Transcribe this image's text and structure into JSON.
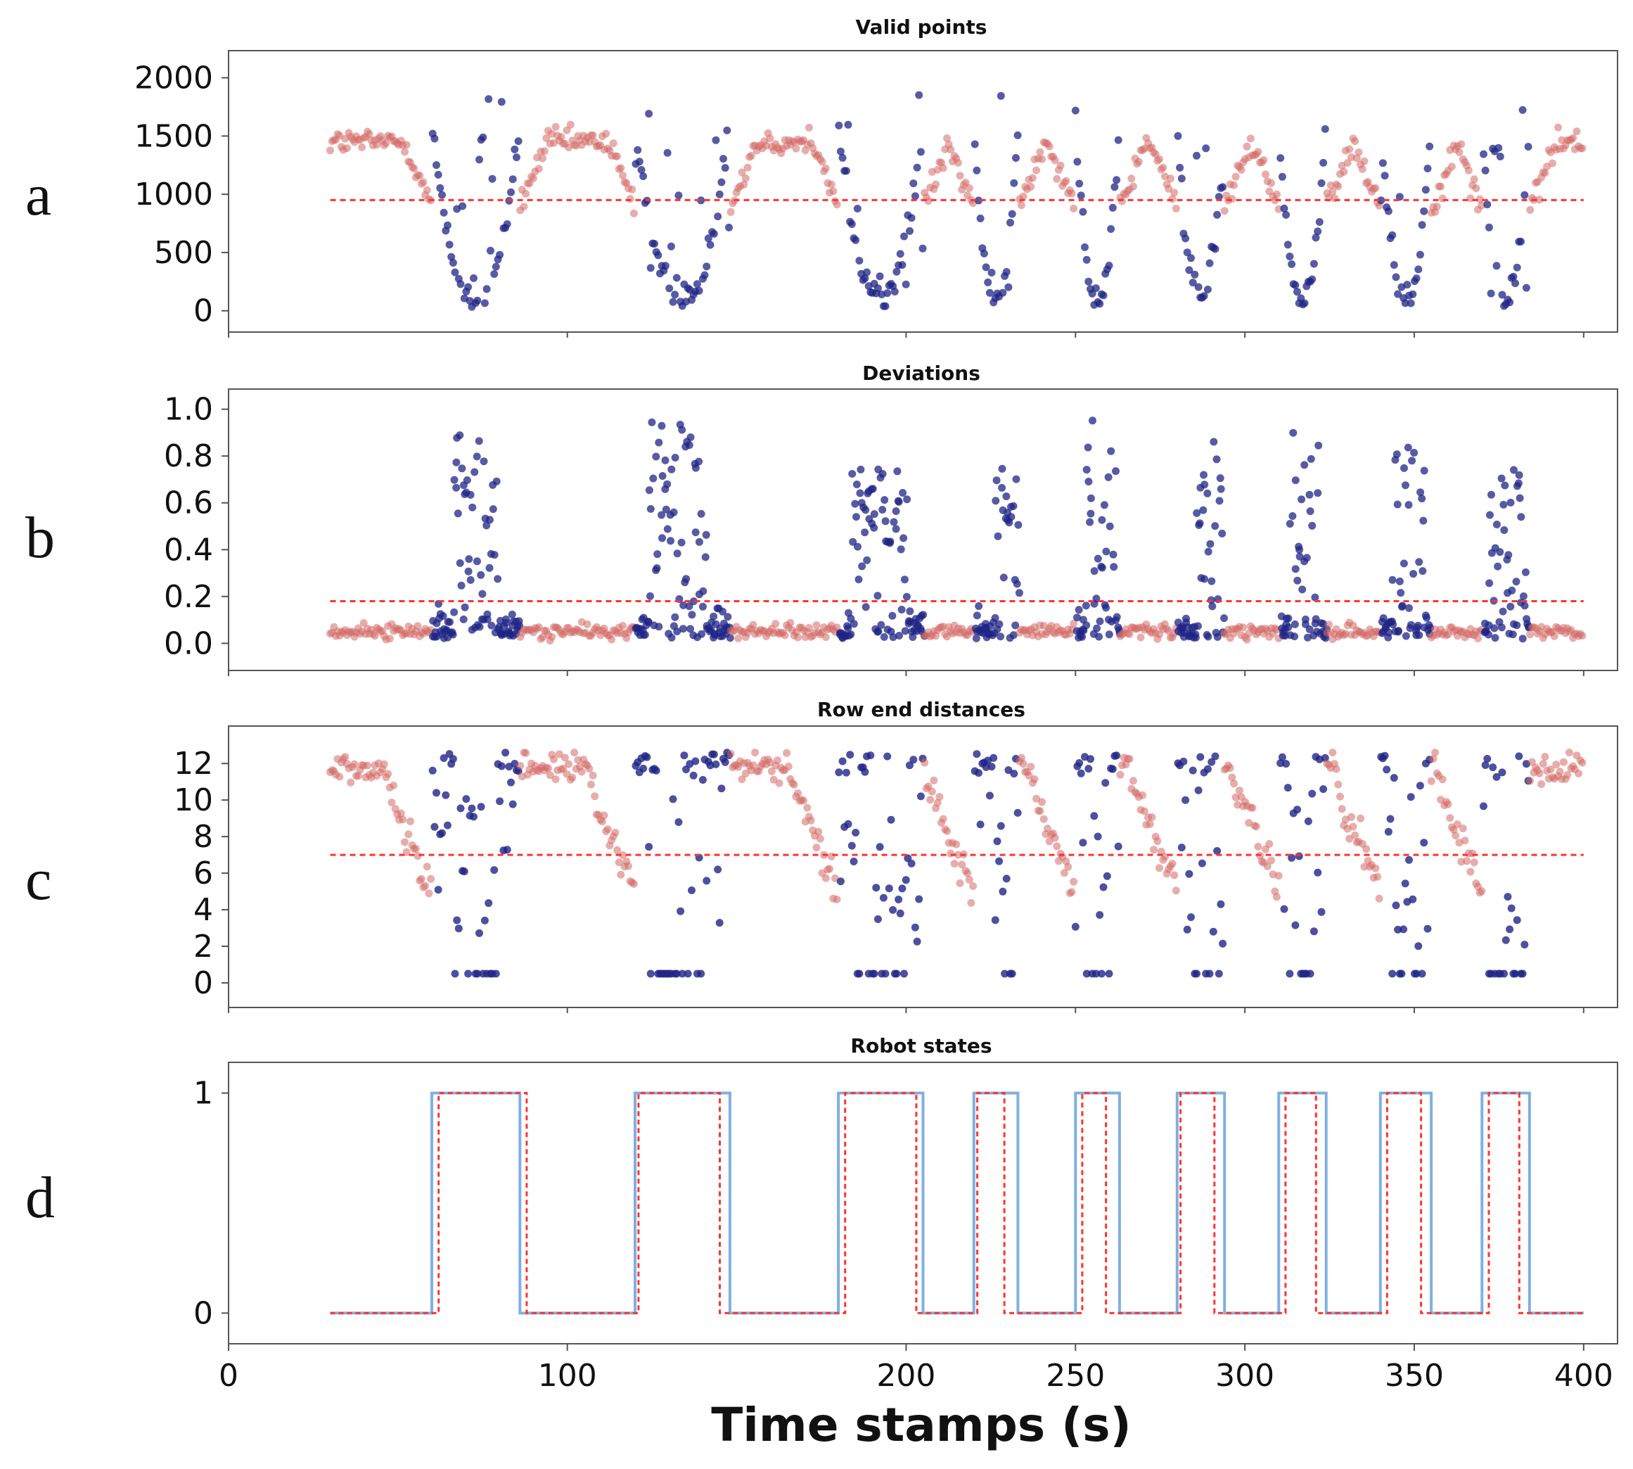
{
  "colors": {
    "valid": "#d46a66",
    "invalid": "#1f2486",
    "threshold": "#ff3333",
    "state_line": "#7fb0e0",
    "state_dashed": "#ff3333"
  },
  "x_axis": {
    "label": "Time stamps (s)",
    "range": [
      0,
      410
    ],
    "ticks": [
      0,
      100,
      200,
      250,
      300,
      350,
      400
    ],
    "tick_labels": [
      "0",
      "100",
      "200",
      "250",
      "300",
      "350",
      "400"
    ]
  },
  "chart_data": [
    {
      "panel": "a",
      "type": "scatter",
      "title": "Valid points",
      "ylim": [
        -50,
        2100
      ],
      "yticks": [
        0,
        500,
        1000,
        1500,
        2000
      ],
      "ytick_labels": [
        "0",
        "500",
        "1000",
        "1500",
        "2000"
      ],
      "threshold": 950,
      "baseline": 1450,
      "baseline_jitter": 90,
      "dip_bottom": 20,
      "cycles": [
        [
          60,
          86,
          66,
          80
        ],
        [
          120,
          148,
          124,
          141
        ],
        [
          180,
          205,
          184,
          200
        ],
        [
          220,
          233,
          226,
          236
        ],
        [
          250,
          263,
          253,
          262
        ],
        [
          280,
          294,
          285,
          293
        ],
        [
          310,
          324,
          313,
          322
        ],
        [
          340,
          355,
          343,
          353
        ],
        [
          370,
          384,
          372,
          383
        ]
      ],
      "x_range": [
        30,
        400
      ]
    },
    {
      "panel": "b",
      "type": "scatter",
      "title": "Deviations",
      "ylim": [
        -0.05,
        1.02
      ],
      "yticks": [
        0.0,
        0.2,
        0.4,
        0.6,
        0.8,
        1.0
      ],
      "ytick_labels": [
        "0.0",
        "0.2",
        "0.4",
        "0.6",
        "0.8",
        "1.0"
      ],
      "threshold": 0.18,
      "baseline": 0.05,
      "baseline_jitter": 0.03,
      "peaks": [
        0.92,
        0.99,
        0.75,
        0.86,
        0.96,
        0.88,
        0.93,
        0.84,
        0.76
      ],
      "cycles": [
        [
          60,
          86,
          66,
          80
        ],
        [
          120,
          148,
          124,
          141
        ],
        [
          180,
          205,
          184,
          200
        ],
        [
          220,
          233,
          226,
          236
        ],
        [
          250,
          263,
          253,
          262
        ],
        [
          280,
          294,
          285,
          293
        ],
        [
          310,
          324,
          313,
          322
        ],
        [
          340,
          355,
          343,
          353
        ],
        [
          370,
          384,
          372,
          383
        ]
      ],
      "x_range": [
        30,
        400
      ]
    },
    {
      "panel": "c",
      "type": "scatter",
      "title": "Row end distances",
      "ylim": [
        -0.5,
        13.2
      ],
      "yticks": [
        0,
        2,
        4,
        6,
        8,
        10,
        12
      ],
      "ytick_labels": [
        "0",
        "2",
        "4",
        "6",
        "8",
        "10",
        "12"
      ],
      "threshold": 7,
      "baseline": 11.8,
      "baseline_jitter": 0.8,
      "zero_band": 0.5,
      "cycles": [
        [
          60,
          86,
          66,
          80
        ],
        [
          120,
          148,
          124,
          141
        ],
        [
          180,
          205,
          184,
          200
        ],
        [
          220,
          233,
          226,
          236
        ],
        [
          250,
          263,
          253,
          262
        ],
        [
          280,
          294,
          285,
          293
        ],
        [
          310,
          324,
          313,
          322
        ],
        [
          340,
          355,
          343,
          353
        ],
        [
          370,
          384,
          372,
          383
        ]
      ],
      "x_range": [
        30,
        400
      ]
    },
    {
      "panel": "d",
      "type": "line",
      "title": "Robot states",
      "ylim": [
        -0.05,
        1.05
      ],
      "yticks": [
        0,
        1
      ],
      "ytick_labels": [
        "0",
        "1"
      ],
      "x_range": [
        30,
        400
      ],
      "series": [
        {
          "style": "solid",
          "color": "#7fb0e0",
          "intervals": [
            [
              60,
              86
            ],
            [
              120,
              148
            ],
            [
              180,
              205
            ],
            [
              220,
              233
            ],
            [
              250,
              263
            ],
            [
              280,
              294
            ],
            [
              310,
              324
            ],
            [
              340,
              355
            ],
            [
              370,
              384
            ]
          ]
        },
        {
          "style": "dashed",
          "color": "#ff3333",
          "intervals": [
            [
              62,
              88
            ],
            [
              121,
              145
            ],
            [
              182,
              203
            ],
            [
              221,
              229
            ],
            [
              252,
              259
            ],
            [
              281,
              291
            ],
            [
              312,
              321
            ],
            [
              342,
              352
            ],
            [
              372,
              381
            ]
          ]
        }
      ]
    }
  ]
}
